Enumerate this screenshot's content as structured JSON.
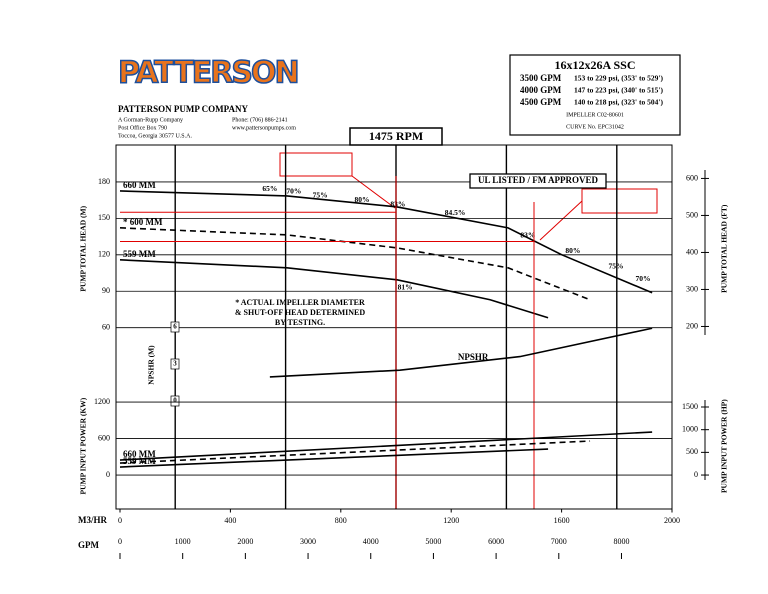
{
  "header": {
    "logo": "PATTERSON",
    "company": "PATTERSON PUMP COMPANY",
    "lines": [
      "A Gorman-Rupp Company",
      "Post Office Box 790",
      "Toccoa, Georgia 30577 U.S.A."
    ],
    "contact": [
      "Phone: (706) 886-2141",
      "www.pattersonpumps.com"
    ]
  },
  "spec": {
    "model": "16x12x26A  SSC",
    "ratings": [
      {
        "flow": "3500 GPM",
        "range": "153 to 229 psi, (353' to 529')"
      },
      {
        "flow": "4000 GPM",
        "range": "147 to 223 psi, (340' to 515')"
      },
      {
        "flow": "4500 GPM",
        "range": "140 to 218 psi, (323' to 504')"
      }
    ],
    "impeller": "IMPELLER  C02-80601",
    "curve": "CURVE No.  EPC31042"
  },
  "speed": "1475  RPM",
  "chart_data": [
    {
      "type": "line",
      "ylabel": "PUMP TOTAL HEAD (M)",
      "y2label": "PUMP TOTAL HEAD (FT)",
      "xlim": [
        0,
        2000
      ],
      "xgrid": [
        200,
        600,
        1000,
        1400,
        1800
      ],
      "ylim": [
        40,
        210
      ],
      "yticks": [
        60,
        90,
        120,
        150,
        180
      ],
      "y2lim": [
        131,
        689
      ],
      "y2ticks": [
        200,
        300,
        400,
        500,
        600
      ],
      "badge": "UL LISTED / FM APPROVED",
      "note": [
        "* ACTUAL IMPELLER DIAMETER",
        "& SHUT-OFF HEAD DETERMINED",
        "BY TESTING."
      ],
      "series": [
        {
          "name": "660 MM",
          "color": "#000000",
          "dashed": false,
          "x": [
            0,
            605,
            1004,
            1406,
            1601,
            1928
          ],
          "values": [
            172.6,
            168.5,
            159.4,
            142.2,
            120,
            88.8
          ]
        },
        {
          "name": "* 600 MM",
          "color": "#000000",
          "dashed": true,
          "x": [
            0,
            605,
            1004,
            1406,
            1703
          ],
          "values": [
            142.2,
            136.4,
            125.7,
            109.3,
            83
          ]
        },
        {
          "name": "559 MM",
          "color": "#000000",
          "dashed": false,
          "x": [
            0,
            605,
            1004,
            1341,
            1551
          ],
          "values": [
            115.9,
            109.3,
            99.4,
            83,
            68.2
          ]
        }
      ],
      "efficiency_labels": [
        {
          "label": "65%",
          "x": 543,
          "y": 174
        },
        {
          "label": "70%",
          "x": 630,
          "y": 172
        },
        {
          "label": "75%",
          "x": 725,
          "y": 168.5
        },
        {
          "label": "80%",
          "x": 877,
          "y": 165
        },
        {
          "label": "83%",
          "x": 1007,
          "y": 161
        },
        {
          "label": "84.5%",
          "x": 1214,
          "y": 154
        },
        {
          "label": "83%",
          "x": 1478,
          "y": 135.6
        },
        {
          "label": "80%",
          "x": 1641,
          "y": 123
        },
        {
          "label": "75%",
          "x": 1797,
          "y": 110
        },
        {
          "label": "70%",
          "x": 1895,
          "y": 100
        },
        {
          "label": "81%",
          "x": 1033,
          "y": 93
        }
      ],
      "duty_color": "#e00000",
      "duty_points": [
        {
          "x": 1000,
          "y": 155
        },
        {
          "x": 1500,
          "y": 131
        }
      ]
    },
    {
      "type": "line",
      "ylabel": "NPSHR (M)",
      "xlim": [
        0,
        2000
      ],
      "ylim": [
        0,
        6
      ],
      "yticks": [
        0,
        3,
        6
      ],
      "series": [
        {
          "name": "NPSHR",
          "color": "#000000",
          "dashed": false,
          "x": [
            543,
            1014,
            1449,
            1928
          ],
          "values": [
            1.95,
            2.5,
            3.6,
            5.9
          ]
        }
      ]
    },
    {
      "type": "line",
      "ylabel": "PUMP INPUT POWER (KW)",
      "y2label": "PUMP INPUT POWER (HP)",
      "xlabel": "M3/HR",
      "xlim": [
        0,
        2000
      ],
      "xticks": [
        0,
        400,
        800,
        1200,
        1600,
        2000
      ],
      "x2label": "GPM",
      "x2lim": [
        0,
        8806
      ],
      "x2ticks": [
        0,
        1000,
        2000,
        3000,
        4000,
        5000,
        6000,
        7000,
        8000
      ],
      "ylim": [
        -550,
        1500
      ],
      "yticks": [
        0,
        600,
        1200
      ],
      "y2lim": [
        -737.6,
        2011.5
      ],
      "y2ticks": [
        0,
        500,
        1000,
        1500
      ],
      "series": [
        {
          "name": "660 MM",
          "color": "#000000",
          "dashed": false,
          "x": [
            0,
            1928
          ],
          "values": [
            247,
            707
          ]
        },
        {
          "color": "#000000",
          "dashed": true,
          "x": [
            0,
            1703
          ],
          "values": [
            197,
            559
          ]
        },
        {
          "name": "559 MM",
          "color": "#000000",
          "dashed": false,
          "x": [
            0,
            1551
          ],
          "values": [
            132,
            427
          ]
        }
      ]
    }
  ]
}
